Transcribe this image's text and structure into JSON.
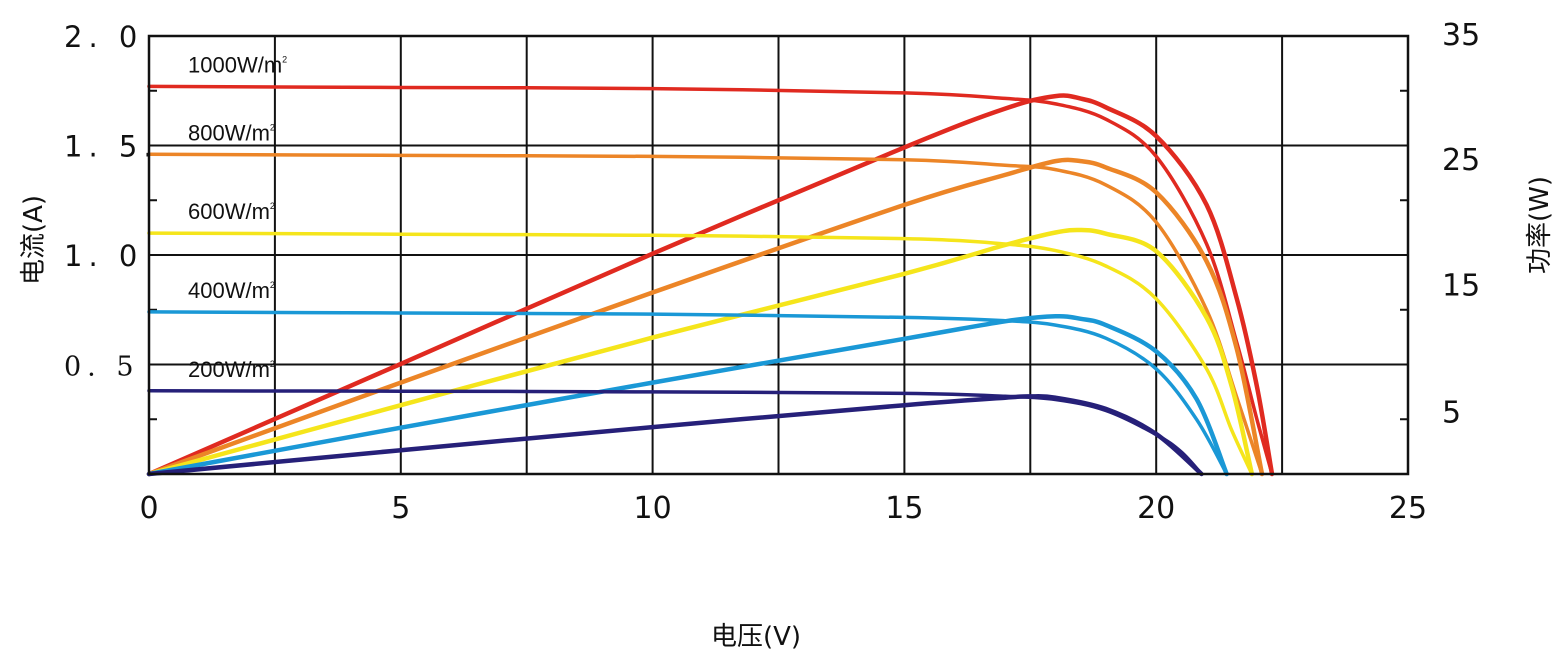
{
  "chart_data": {
    "type": "line",
    "xlabel": "电压(V)",
    "ylabel_left": "电流(A)",
    "ylabel_right": "功率(W)",
    "xlim": [
      0,
      25
    ],
    "ylim_left": [
      0,
      2.0
    ],
    "ylim_right": [
      0,
      35
    ],
    "grid": true,
    "x_ticks": [
      "0",
      "5",
      "10",
      "15",
      "20",
      "25"
    ],
    "y_left_ticks": [
      {
        "value": 2.0,
        "label": "2. 0"
      },
      {
        "value": 1.5,
        "label": "1. 5."
      },
      {
        "value": 1.0,
        "label": "1. 0"
      },
      {
        "value": 0.5,
        "label": "0. 5"
      }
    ],
    "y_right_ticks": [
      {
        "value": 35,
        "label": "35"
      },
      {
        "value": 25,
        "label": "25"
      },
      {
        "value": 15,
        "label": "15"
      },
      {
        "value": 5,
        "label": "5"
      }
    ],
    "series": [
      {
        "name": "1000W/m²",
        "label_main": "1000W/",
        "label_unit": "m",
        "label_sup": "2",
        "color": "#e02a20",
        "iv": [
          [
            0,
            1.77
          ],
          [
            5,
            1.765
          ],
          [
            10,
            1.76
          ],
          [
            15,
            1.74
          ],
          [
            17,
            1.715
          ],
          [
            18,
            1.69
          ],
          [
            19,
            1.62
          ],
          [
            20,
            1.45
          ],
          [
            21,
            1.05
          ],
          [
            21.6,
            0.6
          ],
          [
            22,
            0.25
          ],
          [
            22.3,
            0
          ]
        ],
        "pv": [
          [
            0,
            0
          ],
          [
            5,
            8.8
          ],
          [
            10,
            17.6
          ],
          [
            15,
            26.1
          ],
          [
            17,
            29.2
          ],
          [
            18,
            30.2
          ],
          [
            18.5,
            30.0
          ],
          [
            19,
            29.3
          ],
          [
            20,
            27.0
          ],
          [
            21,
            21.5
          ],
          [
            21.6,
            14.0
          ],
          [
            22,
            7.0
          ],
          [
            22.3,
            0
          ]
        ]
      },
      {
        "name": "800W/m²",
        "label_main": "800W/",
        "label_unit": "m",
        "label_sup": "2",
        "color": "#ec8527",
        "iv": [
          [
            0,
            1.46
          ],
          [
            5,
            1.455
          ],
          [
            10,
            1.45
          ],
          [
            15,
            1.435
          ],
          [
            17,
            1.41
          ],
          [
            18,
            1.39
          ],
          [
            19,
            1.32
          ],
          [
            20,
            1.15
          ],
          [
            21,
            0.75
          ],
          [
            21.6,
            0.35
          ],
          [
            22.1,
            0
          ]
        ],
        "pv": [
          [
            0,
            0
          ],
          [
            5,
            7.3
          ],
          [
            10,
            14.5
          ],
          [
            15,
            21.5
          ],
          [
            17,
            23.9
          ],
          [
            18,
            25.0
          ],
          [
            18.5,
            25.0
          ],
          [
            19,
            24.5
          ],
          [
            20,
            22.5
          ],
          [
            21,
            17.0
          ],
          [
            21.6,
            10.0
          ],
          [
            22.1,
            0
          ]
        ]
      },
      {
        "name": "600W/m²",
        "label_main": "600W/",
        "label_unit": "m",
        "label_sup": "2",
        "color": "#f5e51b",
        "iv": [
          [
            0,
            1.1
          ],
          [
            5,
            1.095
          ],
          [
            10,
            1.09
          ],
          [
            15,
            1.075
          ],
          [
            17,
            1.05
          ],
          [
            18,
            1.02
          ],
          [
            19,
            0.95
          ],
          [
            20,
            0.8
          ],
          [
            21,
            0.48
          ],
          [
            21.5,
            0.2
          ],
          [
            21.9,
            0
          ]
        ],
        "pv": [
          [
            0,
            0
          ],
          [
            5,
            5.5
          ],
          [
            10,
            10.9
          ],
          [
            15,
            16.0
          ],
          [
            17,
            18.3
          ],
          [
            18,
            19.3
          ],
          [
            18.5,
            19.5
          ],
          [
            19,
            19.2
          ],
          [
            20,
            17.8
          ],
          [
            21,
            12.5
          ],
          [
            21.5,
            7.0
          ],
          [
            21.9,
            0
          ]
        ]
      },
      {
        "name": "400W/m²",
        "label_main": "400W/",
        "label_unit": "m",
        "label_sup": "2",
        "color": "#1a98d6",
        "iv": [
          [
            0,
            0.74
          ],
          [
            5,
            0.735
          ],
          [
            10,
            0.73
          ],
          [
            15,
            0.715
          ],
          [
            17,
            0.7
          ],
          [
            18,
            0.68
          ],
          [
            19,
            0.62
          ],
          [
            20,
            0.48
          ],
          [
            20.8,
            0.25
          ],
          [
            21.4,
            0
          ]
        ],
        "pv": [
          [
            0,
            0
          ],
          [
            5,
            3.7
          ],
          [
            10,
            7.3
          ],
          [
            15,
            10.8
          ],
          [
            17,
            12.2
          ],
          [
            18,
            12.6
          ],
          [
            18.5,
            12.4
          ],
          [
            19,
            11.9
          ],
          [
            20,
            9.8
          ],
          [
            20.8,
            6.0
          ],
          [
            21.4,
            0
          ]
        ]
      },
      {
        "name": "200W/m²",
        "label_main": "200W/",
        "label_unit": "m",
        "label_sup": "2",
        "color": "#262079",
        "iv": [
          [
            0,
            0.38
          ],
          [
            5,
            0.378
          ],
          [
            10,
            0.375
          ],
          [
            15,
            0.368
          ],
          [
            17,
            0.355
          ],
          [
            18,
            0.34
          ],
          [
            19,
            0.29
          ],
          [
            20,
            0.18
          ],
          [
            20.5,
            0.1
          ],
          [
            20.9,
            0
          ]
        ],
        "pv": [
          [
            0,
            0
          ],
          [
            5,
            1.9
          ],
          [
            10,
            3.75
          ],
          [
            15,
            5.5
          ],
          [
            17,
            6.1
          ],
          [
            17.5,
            6.2
          ],
          [
            18,
            6.1
          ],
          [
            19,
            5.2
          ],
          [
            20,
            3.2
          ],
          [
            20.9,
            0
          ]
        ]
      }
    ]
  }
}
